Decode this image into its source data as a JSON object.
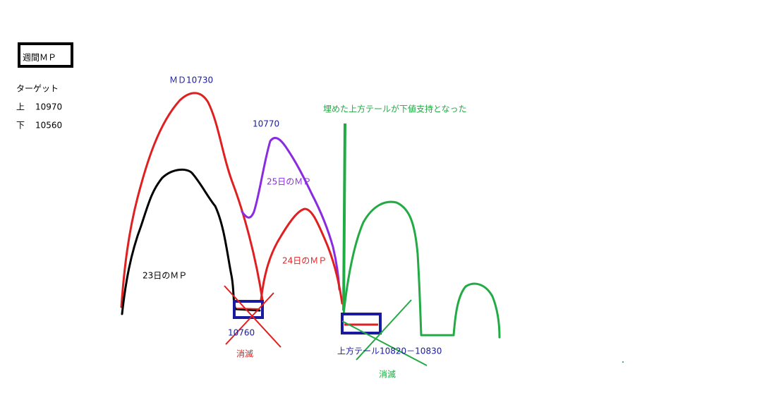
{
  "header": {
    "box_label": "週間ＭＰ",
    "target_title": "ターゲット",
    "upper_label": "上",
    "upper_value": "10970",
    "lower_label": "下",
    "lower_value": "10560"
  },
  "annotations": {
    "md": "ＭＤ10730",
    "peak_25": "10770",
    "mp_25": "25日のＭＰ",
    "mp_24": "24日のＭＰ",
    "mp_23": "23日のＭＰ",
    "level_10760": "10760",
    "vanished_red": "消滅",
    "upper_tail": "上方テール10820－10830",
    "vanished_green": "消滅",
    "support_note": "埋めた上方テールが下値支持となった"
  }
}
